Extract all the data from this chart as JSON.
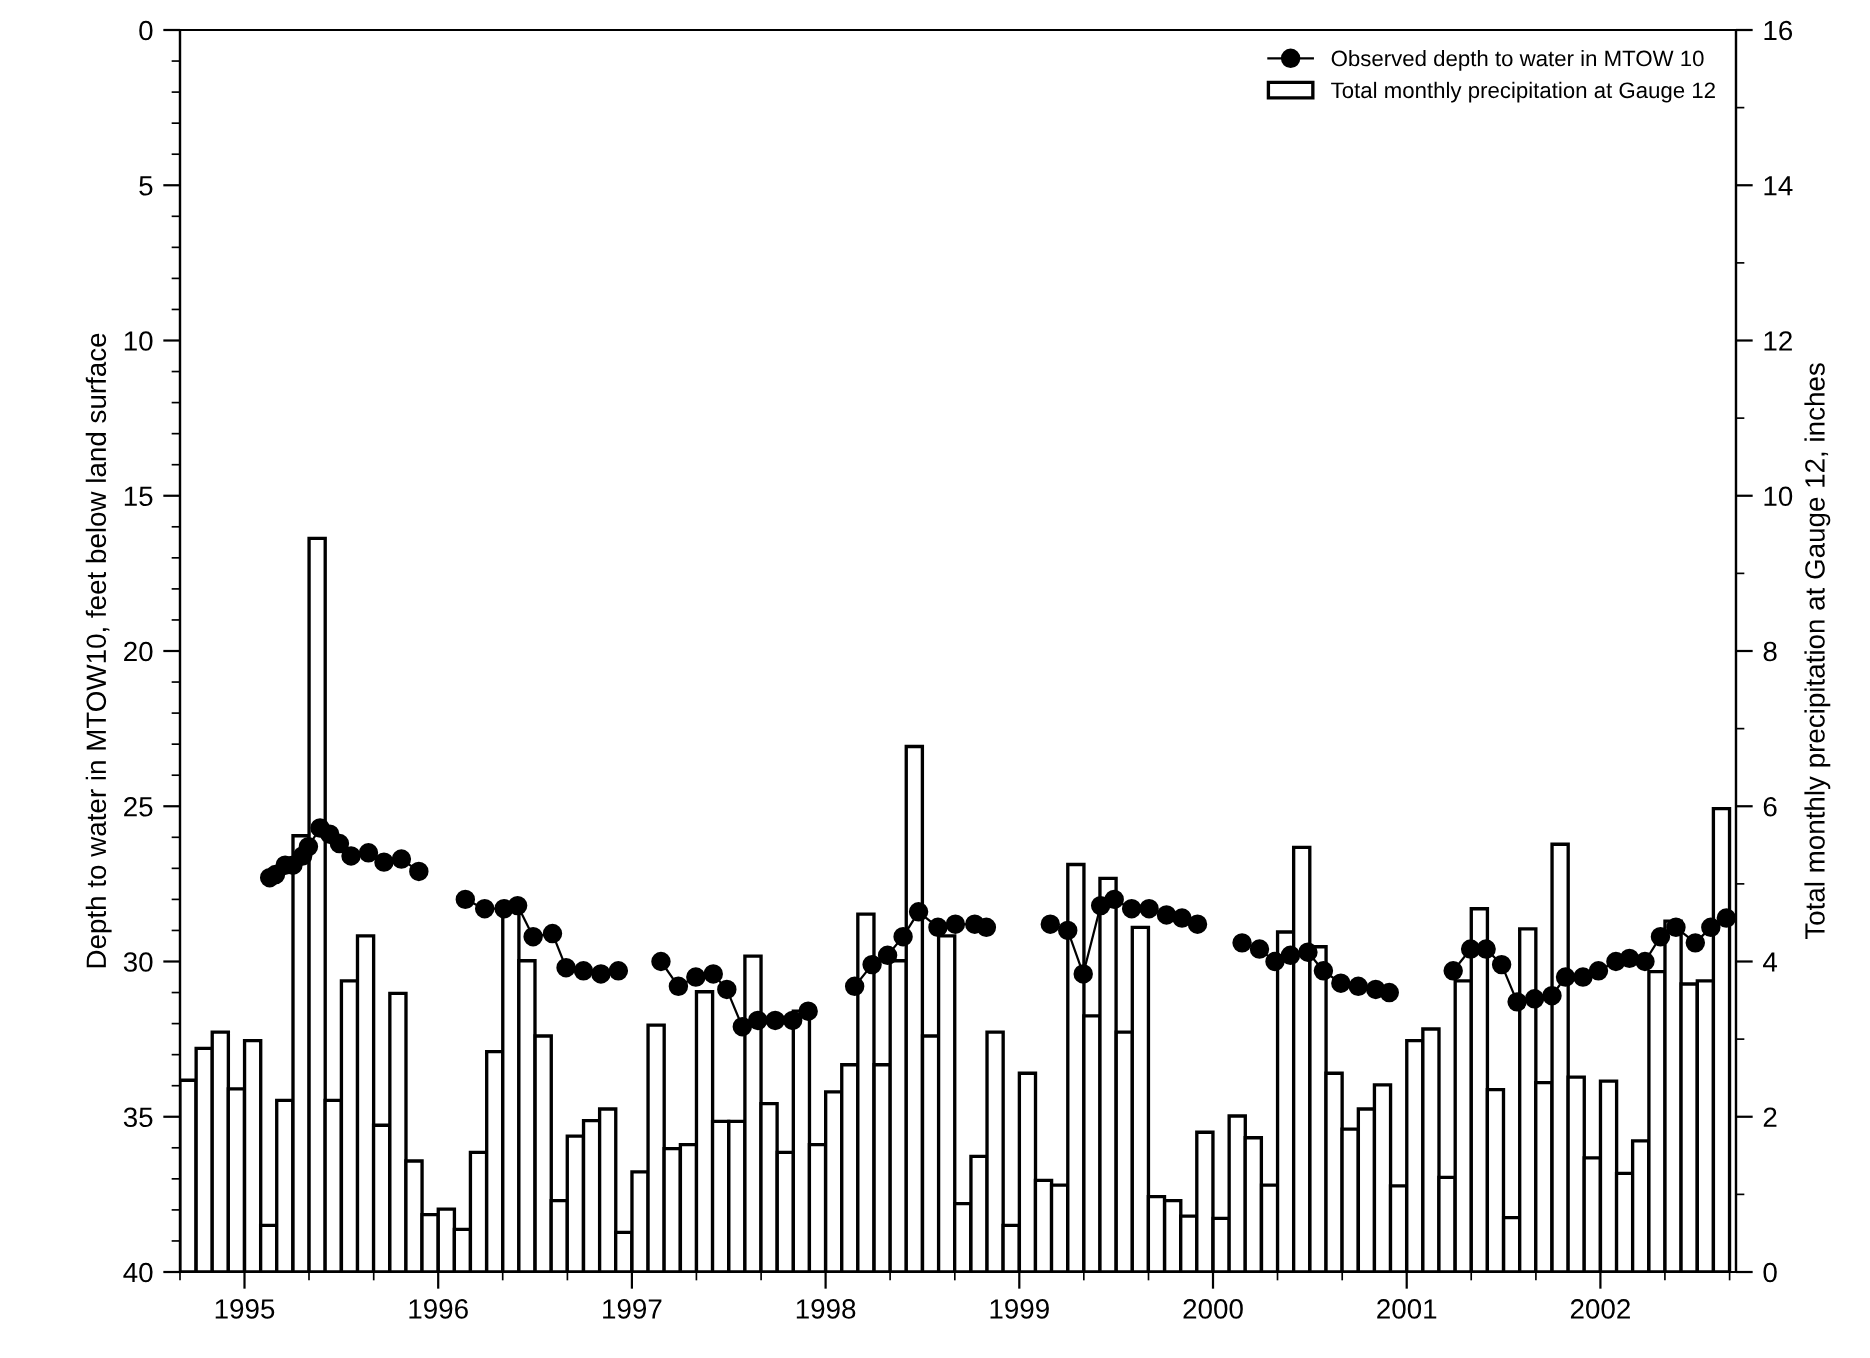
{
  "chart_data": {
    "type": "bar",
    "ylabel": "Depth to water in MTOW10, feet below land surface",
    "y2label": "Total monthly precipitation at Gauge 12, inches",
    "xlim": [
      1994.667,
      2002.7
    ],
    "xticks": [
      {
        "value": 1994.667,
        "label": null
      },
      1995,
      {
        "value": 1995.333,
        "label": null
      },
      {
        "value": 1995.667,
        "label": null
      },
      1996,
      {
        "value": 1996.333,
        "label": null
      },
      {
        "value": 1996.667,
        "label": null
      },
      1997,
      {
        "value": 1997.333,
        "label": null
      },
      {
        "value": 1997.667,
        "label": null
      },
      1998,
      {
        "value": 1998.333,
        "label": null
      },
      {
        "value": 1998.667,
        "label": null
      },
      1999,
      {
        "value": 1999.333,
        "label": null
      },
      {
        "value": 1999.667,
        "label": null
      },
      2000,
      {
        "value": 2000.333,
        "label": null
      },
      {
        "value": 2000.667,
        "label": null
      },
      2001,
      {
        "value": 2001.333,
        "label": null
      },
      {
        "value": 2001.667,
        "label": null
      },
      2002,
      {
        "value": 2002.333,
        "label": null
      },
      {
        "value": 2002.667,
        "label": null
      }
    ],
    "ylim": [
      40,
      0
    ],
    "yticks": [
      0,
      {
        "value": 1,
        "label": null
      },
      {
        "value": 2,
        "label": null
      },
      {
        "value": 3,
        "label": null
      },
      {
        "value": 4,
        "label": null
      },
      5,
      {
        "value": 6,
        "label": null
      },
      {
        "value": 7,
        "label": null
      },
      {
        "value": 8,
        "label": null
      },
      {
        "value": 9,
        "label": null
      },
      10,
      {
        "value": 11,
        "label": null
      },
      {
        "value": 12,
        "label": null
      },
      {
        "value": 13,
        "label": null
      },
      {
        "value": 14,
        "label": null
      },
      15,
      {
        "value": 16,
        "label": null
      },
      {
        "value": 17,
        "label": null
      },
      {
        "value": 18,
        "label": null
      },
      {
        "value": 19,
        "label": null
      },
      20,
      {
        "value": 21,
        "label": null
      },
      {
        "value": 22,
        "label": null
      },
      {
        "value": 23,
        "label": null
      },
      {
        "value": 24,
        "label": null
      },
      25,
      {
        "value": 26,
        "label": null
      },
      {
        "value": 27,
        "label": null
      },
      {
        "value": 28,
        "label": null
      },
      {
        "value": 29,
        "label": null
      },
      30,
      {
        "value": 31,
        "label": null
      },
      {
        "value": 32,
        "label": null
      },
      {
        "value": 33,
        "label": null
      },
      {
        "value": 34,
        "label": null
      },
      35,
      {
        "value": 36,
        "label": null
      },
      {
        "value": 37,
        "label": null
      },
      {
        "value": 38,
        "label": null
      },
      {
        "value": 39,
        "label": null
      },
      40
    ],
    "y2lim": [
      0,
      16
    ],
    "y2ticks": [
      0,
      {
        "value": 1,
        "label": null
      },
      2,
      {
        "value": 3,
        "label": null
      },
      4,
      {
        "value": 5,
        "label": null
      },
      6,
      {
        "value": 7,
        "label": null
      },
      8,
      {
        "value": 9,
        "label": null
      },
      10,
      {
        "value": 11,
        "label": null
      },
      12,
      {
        "value": 13,
        "label": null
      },
      14,
      {
        "value": 15,
        "label": null
      },
      16
    ],
    "legend": "top right",
    "grid": false,
    "series": [
      {
        "name": "Observed depth to water in MTOW 10",
        "type": "line",
        "axis": "y",
        "color": "#000000",
        "marker": "circle",
        "line_style": "solid",
        "x": [
          1995.13,
          1995.16,
          1995.21,
          1995.25,
          1995.3,
          1995.33,
          1995.39,
          1995.44,
          1995.49,
          1995.55,
          1995.64,
          1995.72,
          1995.81,
          1995.9,
          1996.02,
          1996.14,
          1996.24,
          1996.34,
          1996.41,
          1996.49,
          1996.59,
          1996.66,
          1996.75,
          1996.84,
          1996.93,
          1997.04,
          1997.15,
          1997.24,
          1997.33,
          1997.42,
          1997.49,
          1997.57,
          1997.65,
          1997.74,
          1997.83,
          1997.91,
          1998.03,
          1998.15,
          1998.24,
          1998.32,
          1998.4,
          1998.48,
          1998.58,
          1998.67,
          1998.77,
          1998.83,
          1999.0,
          1999.16,
          1999.25,
          1999.33,
          1999.42,
          1999.49,
          1999.58,
          1999.67,
          1999.76,
          1999.84,
          1999.92,
          2000.03,
          2000.15,
          2000.24,
          2000.32,
          2000.4,
          2000.49,
          2000.57,
          2000.66,
          2000.75,
          2000.84,
          2000.91,
          2001.08,
          2001.24,
          2001.33,
          2001.41,
          2001.49,
          2001.57,
          2001.66,
          2001.75,
          2001.82,
          2001.91,
          2001.99,
          2002.08,
          2002.15,
          2002.23,
          2002.31,
          2002.39,
          2002.49,
          2002.57,
          2002.65
        ],
        "values": [
          27.3,
          27.2,
          26.9,
          26.9,
          26.6,
          26.3,
          25.7,
          25.9,
          26.2,
          26.6,
          26.5,
          26.8,
          26.7,
          27.1,
          null,
          28.0,
          28.3,
          28.3,
          28.2,
          29.2,
          29.1,
          30.2,
          30.3,
          30.4,
          30.3,
          null,
          30.0,
          30.8,
          30.5,
          30.4,
          30.9,
          32.1,
          31.9,
          31.9,
          31.9,
          31.6,
          null,
          30.8,
          30.1,
          29.8,
          29.2,
          28.4,
          28.9,
          28.8,
          28.8,
          28.9,
          null,
          28.8,
          29.0,
          30.4,
          28.2,
          28.0,
          28.3,
          28.3,
          28.5,
          28.6,
          28.8,
          null,
          29.4,
          29.6,
          30.0,
          29.8,
          29.7,
          30.3,
          30.7,
          30.8,
          30.9,
          31.0,
          null,
          30.3,
          29.6,
          29.6,
          30.1,
          31.3,
          31.2,
          31.1,
          30.5,
          30.5,
          30.3,
          30.0,
          29.9,
          30.0,
          29.2,
          28.9,
          29.4,
          28.9,
          28.6
        ]
      },
      {
        "name": "Total monthly precipitation at Gauge 12",
        "axis": "y2",
        "color": "#ffffff",
        "x": [
          1994.708,
          1994.792,
          1994.875,
          1994.958,
          1995.042,
          1995.125,
          1995.208,
          1995.292,
          1995.375,
          1995.458,
          1995.542,
          1995.625,
          1995.708,
          1995.792,
          1995.875,
          1995.958,
          1996.042,
          1996.125,
          1996.208,
          1996.292,
          1996.375,
          1996.458,
          1996.542,
          1996.625,
          1996.708,
          1996.792,
          1996.875,
          1996.958,
          1997.042,
          1997.125,
          1997.208,
          1997.292,
          1997.375,
          1997.458,
          1997.542,
          1997.625,
          1997.708,
          1997.792,
          1997.875,
          1997.958,
          1998.042,
          1998.125,
          1998.208,
          1998.292,
          1998.375,
          1998.458,
          1998.542,
          1998.625,
          1998.708,
          1998.792,
          1998.875,
          1998.958,
          1999.042,
          1999.125,
          1999.208,
          1999.292,
          1999.375,
          1999.458,
          1999.542,
          1999.625,
          1999.708,
          1999.792,
          1999.875,
          1999.958,
          2000.042,
          2000.125,
          2000.208,
          2000.292,
          2000.375,
          2000.458,
          2000.542,
          2000.625,
          2000.708,
          2000.792,
          2000.875,
          2000.958,
          2001.042,
          2001.125,
          2001.208,
          2001.292,
          2001.375,
          2001.458,
          2001.542,
          2001.625,
          2001.708,
          2001.792,
          2001.875,
          2001.958,
          2002.042,
          2002.125,
          2002.208,
          2002.292,
          2002.375,
          2002.458,
          2002.542,
          2002.625
        ],
        "values": [
          2.47,
          2.88,
          3.09,
          2.36,
          2.98,
          0.6,
          2.21,
          5.62,
          9.45,
          2.21,
          3.75,
          4.33,
          1.89,
          3.59,
          1.43,
          0.74,
          0.81,
          0.55,
          1.54,
          2.84,
          4.7,
          4.01,
          3.04,
          0.92,
          1.75,
          1.95,
          2.1,
          0.51,
          1.29,
          3.18,
          1.59,
          1.64,
          3.61,
          1.94,
          1.94,
          4.07,
          2.17,
          1.54,
          3.36,
          1.64,
          2.32,
          2.67,
          4.61,
          2.67,
          4.01,
          6.77,
          3.04,
          4.33,
          0.88,
          1.49,
          3.09,
          0.6,
          2.56,
          1.18,
          1.12,
          5.25,
          3.3,
          5.07,
          3.09,
          4.44,
          0.97,
          0.92,
          0.72,
          1.8,
          0.69,
          2.01,
          1.73,
          1.12,
          4.38,
          5.47,
          4.19,
          2.56,
          1.84,
          2.1,
          2.41,
          1.11,
          2.98,
          3.13,
          1.22,
          3.75,
          4.68,
          2.35,
          0.7,
          4.42,
          2.44,
          5.51,
          2.51,
          1.47,
          2.46,
          1.27,
          1.69,
          3.87,
          4.52,
          3.71,
          3.75,
          5.97
        ]
      }
    ]
  }
}
